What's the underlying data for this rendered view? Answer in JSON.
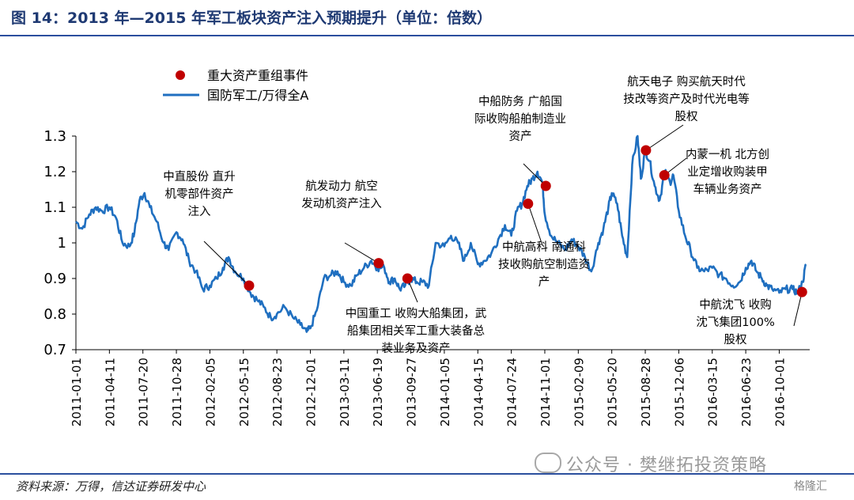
{
  "header": {
    "title": "图 14：2013 年—2015 年军工板块资产注入预期提升（单位：倍数）"
  },
  "footer": {
    "source": "资料来源：万得，信达证券研发中心",
    "watermark": "公众号 · 樊继拓投资策略",
    "corner_logo": "格隆汇"
  },
  "chart_data": {
    "type": "line",
    "ylim": [
      0.7,
      1.3
    ],
    "yticks": [
      "1.3",
      "1.2",
      "1.1",
      "1",
      "0.9",
      "0.8",
      "0.7"
    ],
    "x_ticks": [
      "2011-01-01",
      "2011-04-11",
      "2011-07-20",
      "2011-10-28",
      "2012-02-05",
      "2012-05-15",
      "2012-08-23",
      "2012-12-01",
      "2013-03-11",
      "2013-06-19",
      "2013-09-27",
      "2014-01-05",
      "2014-04-15",
      "2014-07-24",
      "2014-11-01",
      "2015-02-09",
      "2015-05-20",
      "2015-08-28",
      "2015-12-06",
      "2016-03-15",
      "2016-06-23",
      "2016-10-01"
    ],
    "legend": {
      "placement": "top-left",
      "events": "重大资产重组事件",
      "series": "国防军工/万得全A"
    },
    "series": [
      {
        "name": "国防军工/万得全A",
        "color": "#1f6fc0",
        "points": [
          [
            "2011-01-01",
            1.06
          ],
          [
            "2011-01-20",
            1.04
          ],
          [
            "2011-02-10",
            1.08
          ],
          [
            "2011-03-01",
            1.1
          ],
          [
            "2011-03-20",
            1.09
          ],
          [
            "2011-04-11",
            1.1
          ],
          [
            "2011-05-01",
            1.07
          ],
          [
            "2011-05-20",
            1.0
          ],
          [
            "2011-06-10",
            0.99
          ],
          [
            "2011-06-25",
            1.03
          ],
          [
            "2011-07-10",
            1.12
          ],
          [
            "2011-07-25",
            1.14
          ],
          [
            "2011-08-10",
            1.1
          ],
          [
            "2011-08-30",
            1.06
          ],
          [
            "2011-09-20",
            1.0
          ],
          [
            "2011-10-05",
            0.98
          ],
          [
            "2011-10-28",
            1.03
          ],
          [
            "2011-11-15",
            1.01
          ],
          [
            "2011-12-05",
            0.95
          ],
          [
            "2011-12-25",
            0.92
          ],
          [
            "2012-01-15",
            0.87
          ],
          [
            "2012-02-05",
            0.88
          ],
          [
            "2012-02-25",
            0.9
          ],
          [
            "2012-03-15",
            0.93
          ],
          [
            "2012-04-01",
            0.96
          ],
          [
            "2012-04-20",
            0.92
          ],
          [
            "2012-05-15",
            0.9
          ],
          [
            "2012-06-05",
            0.86
          ],
          [
            "2012-06-25",
            0.84
          ],
          [
            "2012-07-15",
            0.82
          ],
          [
            "2012-08-05",
            0.79
          ],
          [
            "2012-08-23",
            0.8
          ],
          [
            "2012-09-15",
            0.82
          ],
          [
            "2012-10-10",
            0.79
          ],
          [
            "2012-11-01",
            0.77
          ],
          [
            "2012-11-20",
            0.75
          ],
          [
            "2012-12-01",
            0.76
          ],
          [
            "2012-12-20",
            0.81
          ],
          [
            "2013-01-10",
            0.9
          ],
          [
            "2013-02-01",
            0.91
          ],
          [
            "2013-02-20",
            0.92
          ],
          [
            "2013-03-11",
            0.89
          ],
          [
            "2013-04-01",
            0.88
          ],
          [
            "2013-04-20",
            0.91
          ],
          [
            "2013-05-10",
            0.93
          ],
          [
            "2013-06-01",
            0.95
          ],
          [
            "2013-06-19",
            0.93
          ],
          [
            "2013-07-10",
            0.93
          ],
          [
            "2013-07-25",
            0.89
          ],
          [
            "2013-08-10",
            0.9
          ],
          [
            "2013-08-25",
            0.87
          ],
          [
            "2013-09-10",
            0.88
          ],
          [
            "2013-09-27",
            0.9
          ],
          [
            "2013-10-15",
            0.89
          ],
          [
            "2013-11-01",
            0.89
          ],
          [
            "2013-11-20",
            0.88
          ],
          [
            "2013-12-10",
            1.0
          ],
          [
            "2014-01-05",
            0.99
          ],
          [
            "2014-01-25",
            1.02
          ],
          [
            "2014-02-15",
            1.0
          ],
          [
            "2014-03-05",
            0.95
          ],
          [
            "2014-03-25",
            1.0
          ],
          [
            "2014-04-15",
            0.94
          ],
          [
            "2014-05-05",
            0.95
          ],
          [
            "2014-05-25",
            0.97
          ],
          [
            "2014-06-15",
            1.01
          ],
          [
            "2014-07-05",
            1.05
          ],
          [
            "2014-07-24",
            1.02
          ],
          [
            "2014-08-10",
            1.09
          ],
          [
            "2014-08-25",
            1.11
          ],
          [
            "2014-09-10",
            1.16
          ],
          [
            "2014-09-25",
            1.18
          ],
          [
            "2014-10-10",
            1.2
          ],
          [
            "2014-10-25",
            1.17
          ],
          [
            "2014-11-01",
            1.08
          ],
          [
            "2014-11-20",
            1.02
          ],
          [
            "2014-12-10",
            1.0
          ],
          [
            "2015-01-01",
            0.98
          ],
          [
            "2015-01-20",
            1.01
          ],
          [
            "2015-02-09",
            0.99
          ],
          [
            "2015-03-01",
            0.96
          ],
          [
            "2015-03-20",
            0.92
          ],
          [
            "2015-04-10",
            1.0
          ],
          [
            "2015-04-25",
            1.04
          ],
          [
            "2015-05-10",
            1.1
          ],
          [
            "2015-05-20",
            1.14
          ],
          [
            "2015-06-05",
            1.11
          ],
          [
            "2015-06-20",
            1.02
          ],
          [
            "2015-07-05",
            0.96
          ],
          [
            "2015-07-20",
            1.22
          ],
          [
            "2015-08-05",
            1.3
          ],
          [
            "2015-08-15",
            1.18
          ],
          [
            "2015-08-28",
            1.26
          ],
          [
            "2015-09-10",
            1.23
          ],
          [
            "2015-09-25",
            1.16
          ],
          [
            "2015-10-10",
            1.12
          ],
          [
            "2015-10-25",
            1.2
          ],
          [
            "2015-11-10",
            1.17
          ],
          [
            "2015-11-20",
            1.19
          ],
          [
            "2015-12-06",
            1.09
          ],
          [
            "2015-12-25",
            1.02
          ],
          [
            "2016-01-10",
            0.98
          ],
          [
            "2016-01-30",
            0.93
          ],
          [
            "2016-02-20",
            0.92
          ],
          [
            "2016-03-15",
            0.93
          ],
          [
            "2016-04-05",
            0.91
          ],
          [
            "2016-04-25",
            0.9
          ],
          [
            "2016-05-15",
            0.88
          ],
          [
            "2016-06-05",
            0.89
          ],
          [
            "2016-06-23",
            0.93
          ],
          [
            "2016-07-10",
            0.95
          ],
          [
            "2016-07-25",
            0.92
          ],
          [
            "2016-08-10",
            0.9
          ],
          [
            "2016-08-25",
            0.88
          ],
          [
            "2016-09-10",
            0.87
          ],
          [
            "2016-10-01",
            0.86
          ],
          [
            "2016-10-20",
            0.87
          ],
          [
            "2016-11-10",
            0.87
          ],
          [
            "2016-11-25",
            0.86
          ],
          [
            "2016-12-10",
            0.89
          ],
          [
            "2016-12-20",
            0.94
          ]
        ]
      }
    ],
    "events": [
      {
        "x": "2012-06-01",
        "y": 0.88,
        "lines": [
          "中直股份  直升",
          "机零部件资产",
          "注入"
        ]
      },
      {
        "x": "2013-06-23",
        "y": 0.943,
        "lines": [
          "航发动力  航空",
          "发动机资产注入"
        ]
      },
      {
        "x": "2013-09-17",
        "y": 0.9,
        "lines": [
          "中国重工  收购大船集团，武",
          "船集团相关军工重大装备总",
          "装业务及资产"
        ]
      },
      {
        "x": "2014-11-04",
        "y": 1.16,
        "lines": [
          "中船防务  广船国",
          "际收购船舶制造业",
          "资产"
        ]
      },
      {
        "x": "2014-09-12",
        "y": 1.11,
        "lines": [
          "中航高科  南通科",
          "技收购航空制造资",
          "产"
        ]
      },
      {
        "x": "2015-08-30",
        "y": 1.26,
        "lines": [
          "航天电子  购买航天时代",
          "技改等资产及时代光电等",
          "股权"
        ]
      },
      {
        "x": "2015-10-24",
        "y": 1.19,
        "lines": [
          "内蒙一机  北方创",
          "业定增收购装甲",
          "车辆业务资产"
        ]
      },
      {
        "x": "2016-12-08",
        "y": 0.862,
        "lines": [
          "中航沈飞  收购",
          "沈飞集团100%",
          "股权"
        ]
      }
    ]
  }
}
